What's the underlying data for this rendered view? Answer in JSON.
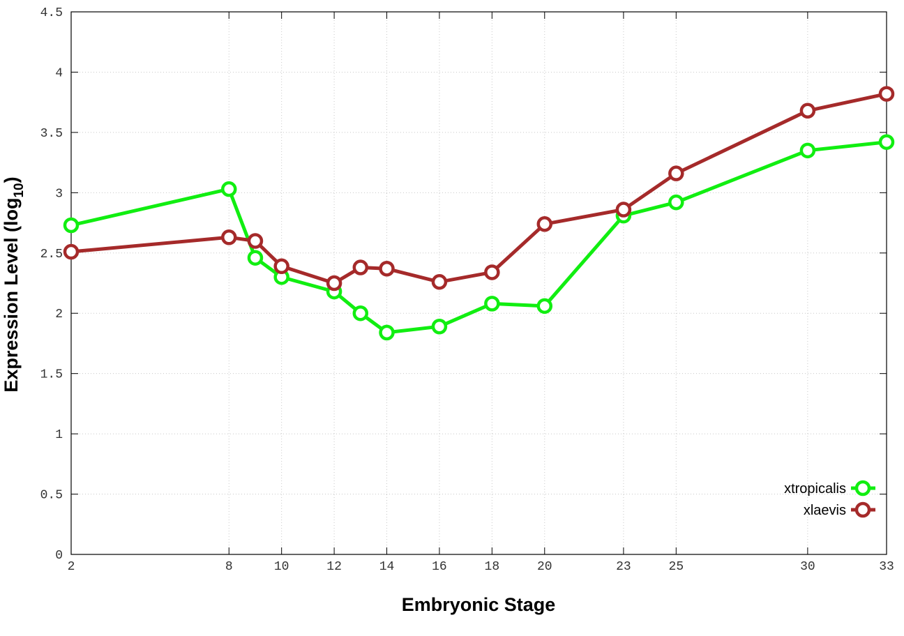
{
  "chart_data": {
    "type": "line",
    "xlabel": "Embryonic Stage",
    "ylabel_main": "Expression Level (log",
    "ylabel_sub": "10",
    "ylabel_end": ")",
    "x_ticks": [
      2,
      8,
      10,
      12,
      14,
      16,
      18,
      20,
      23,
      25,
      30,
      33
    ],
    "x_tick_labels": [
      "2",
      "8",
      "10",
      "12",
      "14",
      "16",
      "18",
      "20",
      "23",
      "25",
      "30",
      "33"
    ],
    "y_ticks": [
      0,
      0.5,
      1,
      1.5,
      2,
      2.5,
      3,
      3.5,
      4,
      4.5
    ],
    "y_tick_labels": [
      "0",
      "0.5",
      "1",
      "1.5",
      "2",
      "2.5",
      "3",
      "3.5",
      "4",
      "4.5"
    ],
    "xlim": [
      2,
      33
    ],
    "ylim": [
      0,
      4.5
    ],
    "grid": true,
    "legend_position": "bottom-right",
    "series": [
      {
        "name": "xtropicalis",
        "color": "#11ee11",
        "x": [
          2,
          8,
          9,
          10,
          12,
          13,
          14,
          16,
          18,
          20,
          23,
          25,
          30,
          33
        ],
        "values": [
          2.73,
          3.03,
          2.46,
          2.3,
          2.18,
          2.0,
          1.84,
          1.89,
          2.08,
          2.06,
          2.81,
          2.92,
          3.35,
          3.42
        ]
      },
      {
        "name": "xlaevis",
        "color": "#a52a2a",
        "x": [
          2,
          8,
          9,
          10,
          12,
          13,
          14,
          16,
          18,
          20,
          23,
          25,
          30,
          33
        ],
        "values": [
          2.51,
          2.63,
          2.6,
          2.39,
          2.25,
          2.38,
          2.37,
          2.26,
          2.34,
          2.74,
          2.86,
          3.16,
          3.68,
          3.82
        ]
      }
    ]
  }
}
